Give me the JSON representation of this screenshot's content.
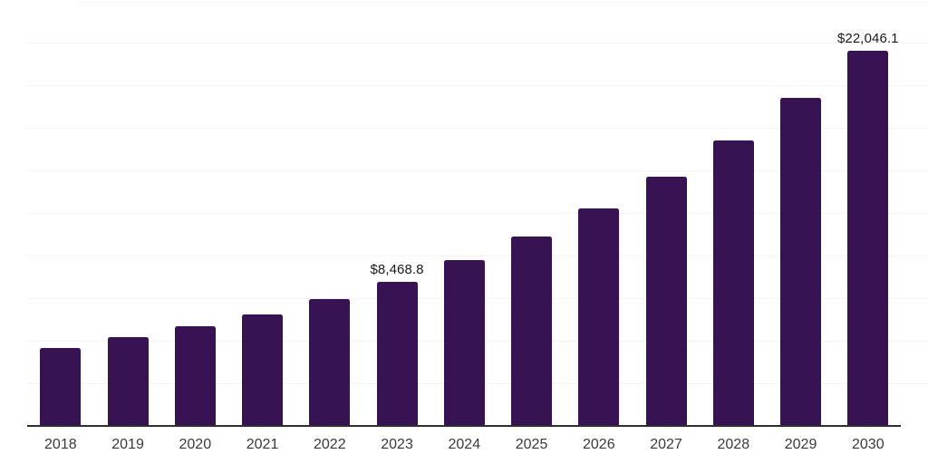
{
  "chart_data": {
    "type": "bar",
    "title": "",
    "xlabel": "",
    "ylabel": "",
    "categories": [
      "2018",
      "2019",
      "2020",
      "2021",
      "2022",
      "2023",
      "2024",
      "2025",
      "2026",
      "2027",
      "2028",
      "2029",
      "2030"
    ],
    "values": [
      4600,
      5200,
      5840,
      6520,
      7440,
      8468.8,
      9710,
      11120,
      12760,
      14630,
      16770,
      19240,
      22046.1
    ],
    "value_labels": {
      "2023": "$8,468.8",
      "2030": "$22,046.1"
    },
    "ylim": [
      0,
      25000
    ],
    "gridline_step": 2500,
    "grid": true,
    "legend": false,
    "colors": {
      "bar": "#371353",
      "gridline": "#f3f3f3",
      "axis_line": "#2e2e2e",
      "tick_label": "#3a3a3a",
      "data_label": "#1a1a1a",
      "background": "#ffffff"
    }
  }
}
